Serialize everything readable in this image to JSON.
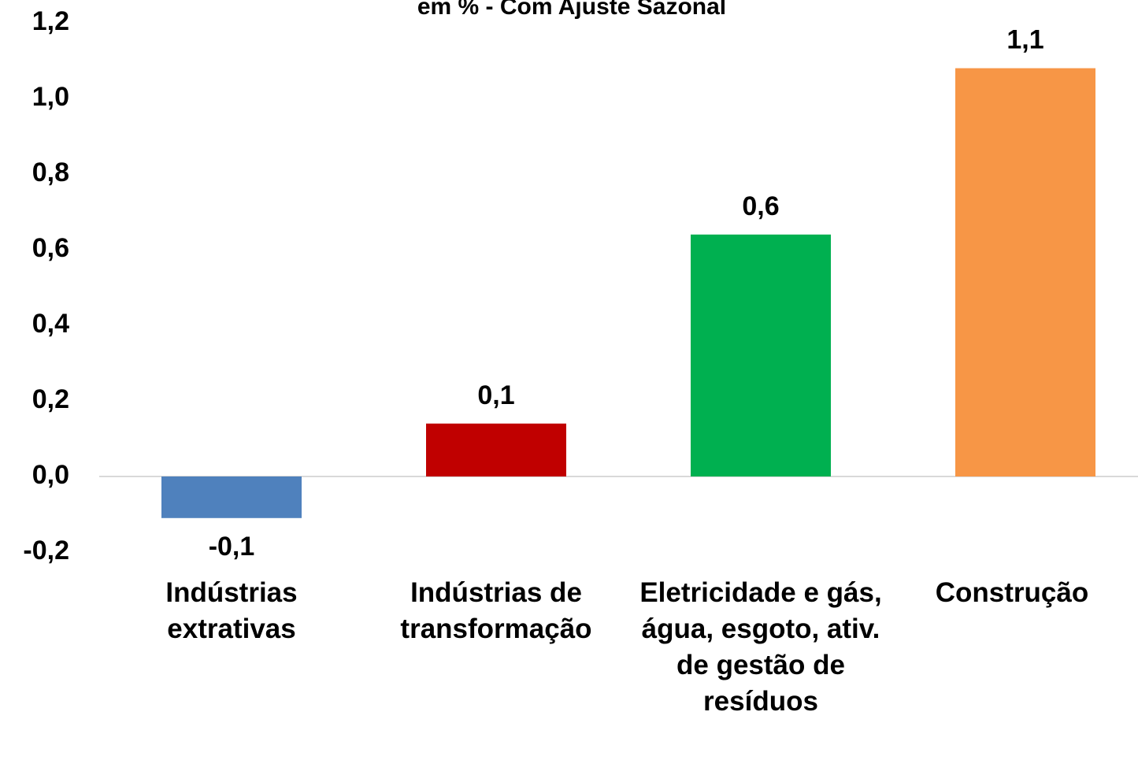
{
  "chart_data": {
    "type": "bar",
    "title": "em % - Com Ajuste Sazonal",
    "categories": [
      "Indústrias extrativas",
      "Indústrias de transformação",
      "Eletricidade e gás, água, esgoto, ativ. de gestão de resíduos",
      "Construção"
    ],
    "values": [
      -0.11,
      0.14,
      0.64,
      1.08
    ],
    "value_labels": [
      "-0,1",
      "0,1",
      "0,6",
      "1,1"
    ],
    "colors": [
      "#4f81bd",
      "#c00000",
      "#00b050",
      "#f79646"
    ],
    "ylim": [
      -0.2,
      1.2
    ],
    "yticks": [
      {
        "value": -0.2,
        "label": "-0,2"
      },
      {
        "value": 0,
        "label": "0,0"
      },
      {
        "value": 0.2,
        "label": "0,2"
      },
      {
        "value": 0.4,
        "label": "0,4"
      },
      {
        "value": 0.6,
        "label": "0,6"
      },
      {
        "value": 0.8,
        "label": "0,8"
      },
      {
        "value": 1.0,
        "label": "1,0"
      },
      {
        "value": 1.2,
        "label": "1,2"
      }
    ],
    "grid": false
  }
}
